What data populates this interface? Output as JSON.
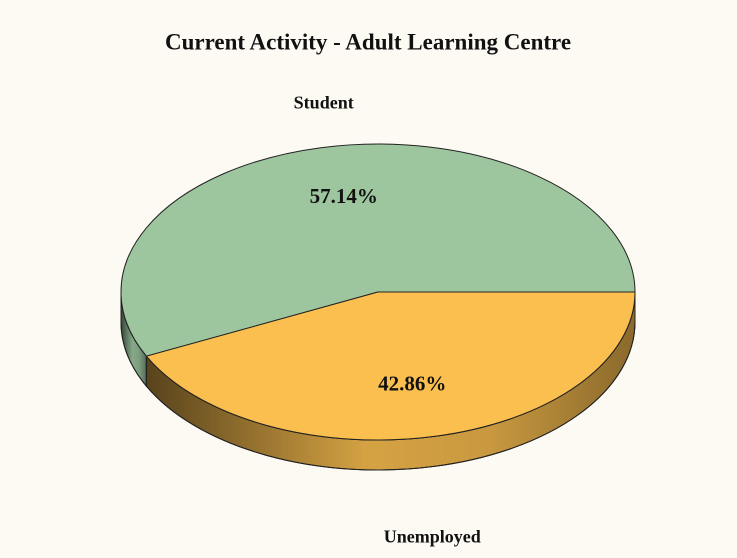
{
  "chart_data": {
    "type": "pie",
    "title": "Current Activity - Adult Learning Centre",
    "categories": [
      "Student",
      "Unemployed"
    ],
    "values": [
      57.14,
      42.86
    ],
    "value_labels": [
      "57.14%",
      "42.86%"
    ],
    "colors": [
      "#9dc69f",
      "#fbbf4f"
    ]
  }
}
